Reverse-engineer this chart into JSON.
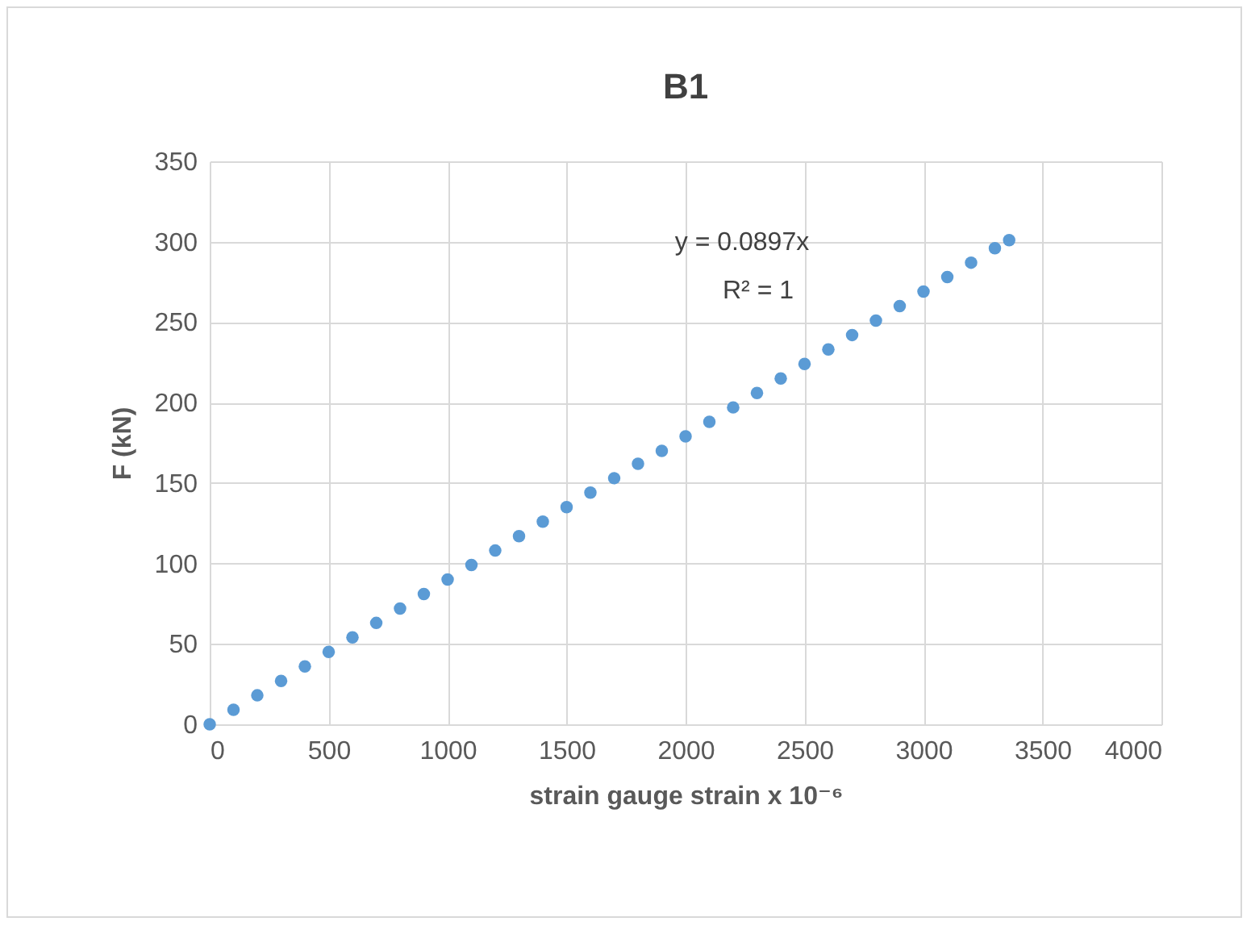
{
  "chart_data": {
    "type": "scatter",
    "title": "B1",
    "xlabel": "strain gauge strain x 10⁻⁶",
    "ylabel": "F (kN)",
    "xlim": [
      0,
      4000
    ],
    "xticks": [
      0,
      500,
      1000,
      1500,
      2000,
      2500,
      3000,
      3500,
      4000
    ],
    "ylim": [
      0,
      350
    ],
    "yticks": [
      0,
      50,
      100,
      150,
      200,
      250,
      300,
      350
    ],
    "grid": true,
    "marker": "circle",
    "annotations": [
      "y = 0.0897x",
      "R² = 1"
    ],
    "series": [
      {
        "type": "scatter",
        "color": "#5b9bd5",
        "x": [
          0,
          100,
          200,
          300,
          400,
          500,
          600,
          700,
          800,
          900,
          1000,
          1100,
          1200,
          1300,
          1400,
          1500,
          1600,
          1700,
          1800,
          1900,
          2000,
          2100,
          2200,
          2300,
          2400,
          2500,
          2600,
          2700,
          2800,
          2900,
          3000,
          3100,
          3200,
          3300,
          3360
        ],
        "values": [
          0,
          9,
          18,
          27,
          36,
          45,
          54,
          63,
          72,
          81,
          90,
          99,
          108,
          117,
          126,
          135,
          144,
          153,
          162,
          170,
          179,
          188,
          197,
          206,
          215,
          224,
          233,
          242,
          251,
          260,
          269,
          278,
          287,
          296,
          301
        ]
      }
    ]
  }
}
